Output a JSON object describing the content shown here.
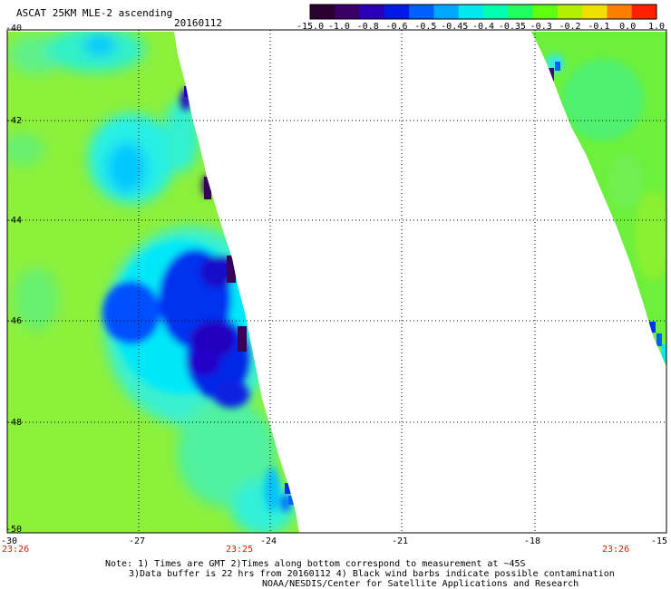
{
  "header": {
    "title": "ASCAT 25KM MLE-2 ascending",
    "date": "20160112"
  },
  "colorbar": {
    "ticks": [
      "-15.0",
      "-1.0",
      "-0.8",
      "-0.6",
      "-0.5",
      "-0.45",
      "-0.4",
      "-0.35",
      "-0.3",
      "-0.2",
      "-0.1",
      "0.0",
      "1.0"
    ],
    "colors": [
      "#2a0030",
      "#3a006a",
      "#2a00b8",
      "#0018e8",
      "#0060ff",
      "#00a8ff",
      "#00e8f0",
      "#00ffb0",
      "#20ff60",
      "#60ff10",
      "#b0f000",
      "#f0e000",
      "#ff8000",
      "#ff2000"
    ]
  },
  "axes": {
    "lat_labels": [
      "-40",
      "-42",
      "-44",
      "-46",
      "-48",
      "-50"
    ],
    "lon_labels": [
      "-30",
      "-27",
      "-24",
      "-21",
      "-18",
      "-15"
    ]
  },
  "times": [
    "23:26",
    "23:25",
    "23:26"
  ],
  "notes": [
    "Note: 1) Times are GMT 2)Times along bottom correspond to measurement at ~45S",
    "3)Data buffer is 22 hrs from 20160112 4) Black wind barbs indicate possible contamination",
    "NOAA/NESDIS/Center for Satellite Applications and Research"
  ]
}
